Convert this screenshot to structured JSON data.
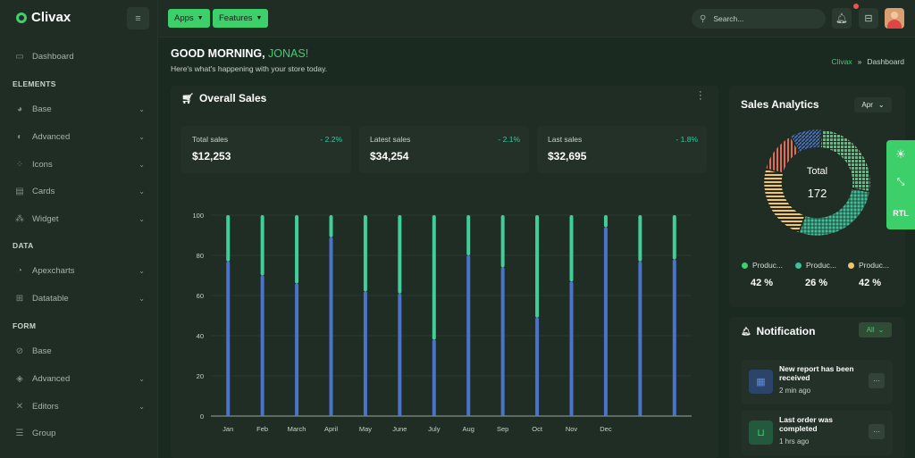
{
  "brand": {
    "name": "Clivax"
  },
  "sidebar": {
    "items_top": [
      {
        "label": "Dashboard",
        "icon": "monitor-icon"
      }
    ],
    "sections": [
      {
        "title": "ELEMENTS",
        "items": [
          {
            "label": "Base",
            "icon": "palette-icon"
          },
          {
            "label": "Advanced",
            "icon": "contrast-icon"
          },
          {
            "label": "Icons",
            "icon": "icons-grid-icon"
          },
          {
            "label": "Cards",
            "icon": "cards-icon"
          },
          {
            "label": "Widget",
            "icon": "widget-icon"
          }
        ]
      },
      {
        "title": "DATA",
        "items": [
          {
            "label": "Apexcharts",
            "icon": "pie-chart-icon"
          },
          {
            "label": "Datatable",
            "icon": "table-icon"
          }
        ]
      },
      {
        "title": "FORM",
        "items": [
          {
            "label": "Base",
            "icon": "form-base-icon"
          },
          {
            "label": "Advanced",
            "icon": "form-advanced-icon"
          },
          {
            "label": "Editors",
            "icon": "editor-icon"
          },
          {
            "label": "Group",
            "icon": "group-icon"
          }
        ]
      }
    ]
  },
  "topbar": {
    "apps_label": "Apps",
    "features_label": "Features",
    "search_placeholder": "Search..."
  },
  "header": {
    "greeting": "GOOD MORNING,",
    "user_name": "JONAS!",
    "subtitle": "Here's what's happening with your store today.",
    "breadcrumb": [
      "Clivax",
      "»",
      "Dashboard"
    ]
  },
  "overall_sales": {
    "title": "Overall Sales",
    "stats": [
      {
        "label": "Total sales",
        "value": "$12,253",
        "change": "2.2%"
      },
      {
        "label": "Latest sales",
        "value": "$34,254",
        "change": "2.1%"
      },
      {
        "label": "Last sales",
        "value": "$32,695",
        "change": "1.8%"
      }
    ]
  },
  "chart_data": {
    "type": "bar",
    "stacked": true,
    "categories": [
      "Jan",
      "Feb",
      "March",
      "April",
      "May",
      "June",
      "July",
      "Aug",
      "Sep",
      "Oct",
      "Nov",
      "Dec",
      "",
      ""
    ],
    "series": [
      {
        "values": [
          77,
          70,
          66,
          89,
          62,
          61,
          38,
          80,
          74,
          49,
          67,
          94,
          77,
          78
        ],
        "color": "#4a73c9"
      },
      {
        "values": [
          23,
          30,
          34,
          11,
          38,
          39,
          62,
          20,
          26,
          51,
          33,
          6,
          23,
          22
        ],
        "color": "#3fcf9a"
      }
    ],
    "yticks": [
      0,
      20,
      40,
      60,
      80,
      100
    ],
    "ylim": [
      0,
      100
    ],
    "grid": true
  },
  "sales_analytics": {
    "title": "Sales Analytics",
    "month": "Apr",
    "center_label": "Total",
    "center_value": "172",
    "segments": [
      {
        "name": "Produc...",
        "value": "42 %",
        "color": "#3fcf6e"
      },
      {
        "name": "Produc...",
        "value": "26 %",
        "color": "#3fbf9a"
      },
      {
        "name": "Produc...",
        "value": "42 %",
        "color": "#f5c46a"
      }
    ],
    "extra_colors": [
      "#e06b5a",
      "#4a73c9"
    ]
  },
  "notification": {
    "title": "Notification",
    "filter": "All",
    "items": [
      {
        "title": "New report has been received",
        "time": "2 min ago",
        "icon": "document-icon",
        "icon_bg": "#2c4468",
        "icon_color": "#5b8fe0"
      },
      {
        "title": "Last order was completed",
        "time": "1 hrs ago",
        "icon": "basket-icon",
        "icon_bg": "#235a3e",
        "icon_color": "#3fcf6e"
      }
    ]
  },
  "switcher": {
    "rtl_label": "RTL"
  }
}
